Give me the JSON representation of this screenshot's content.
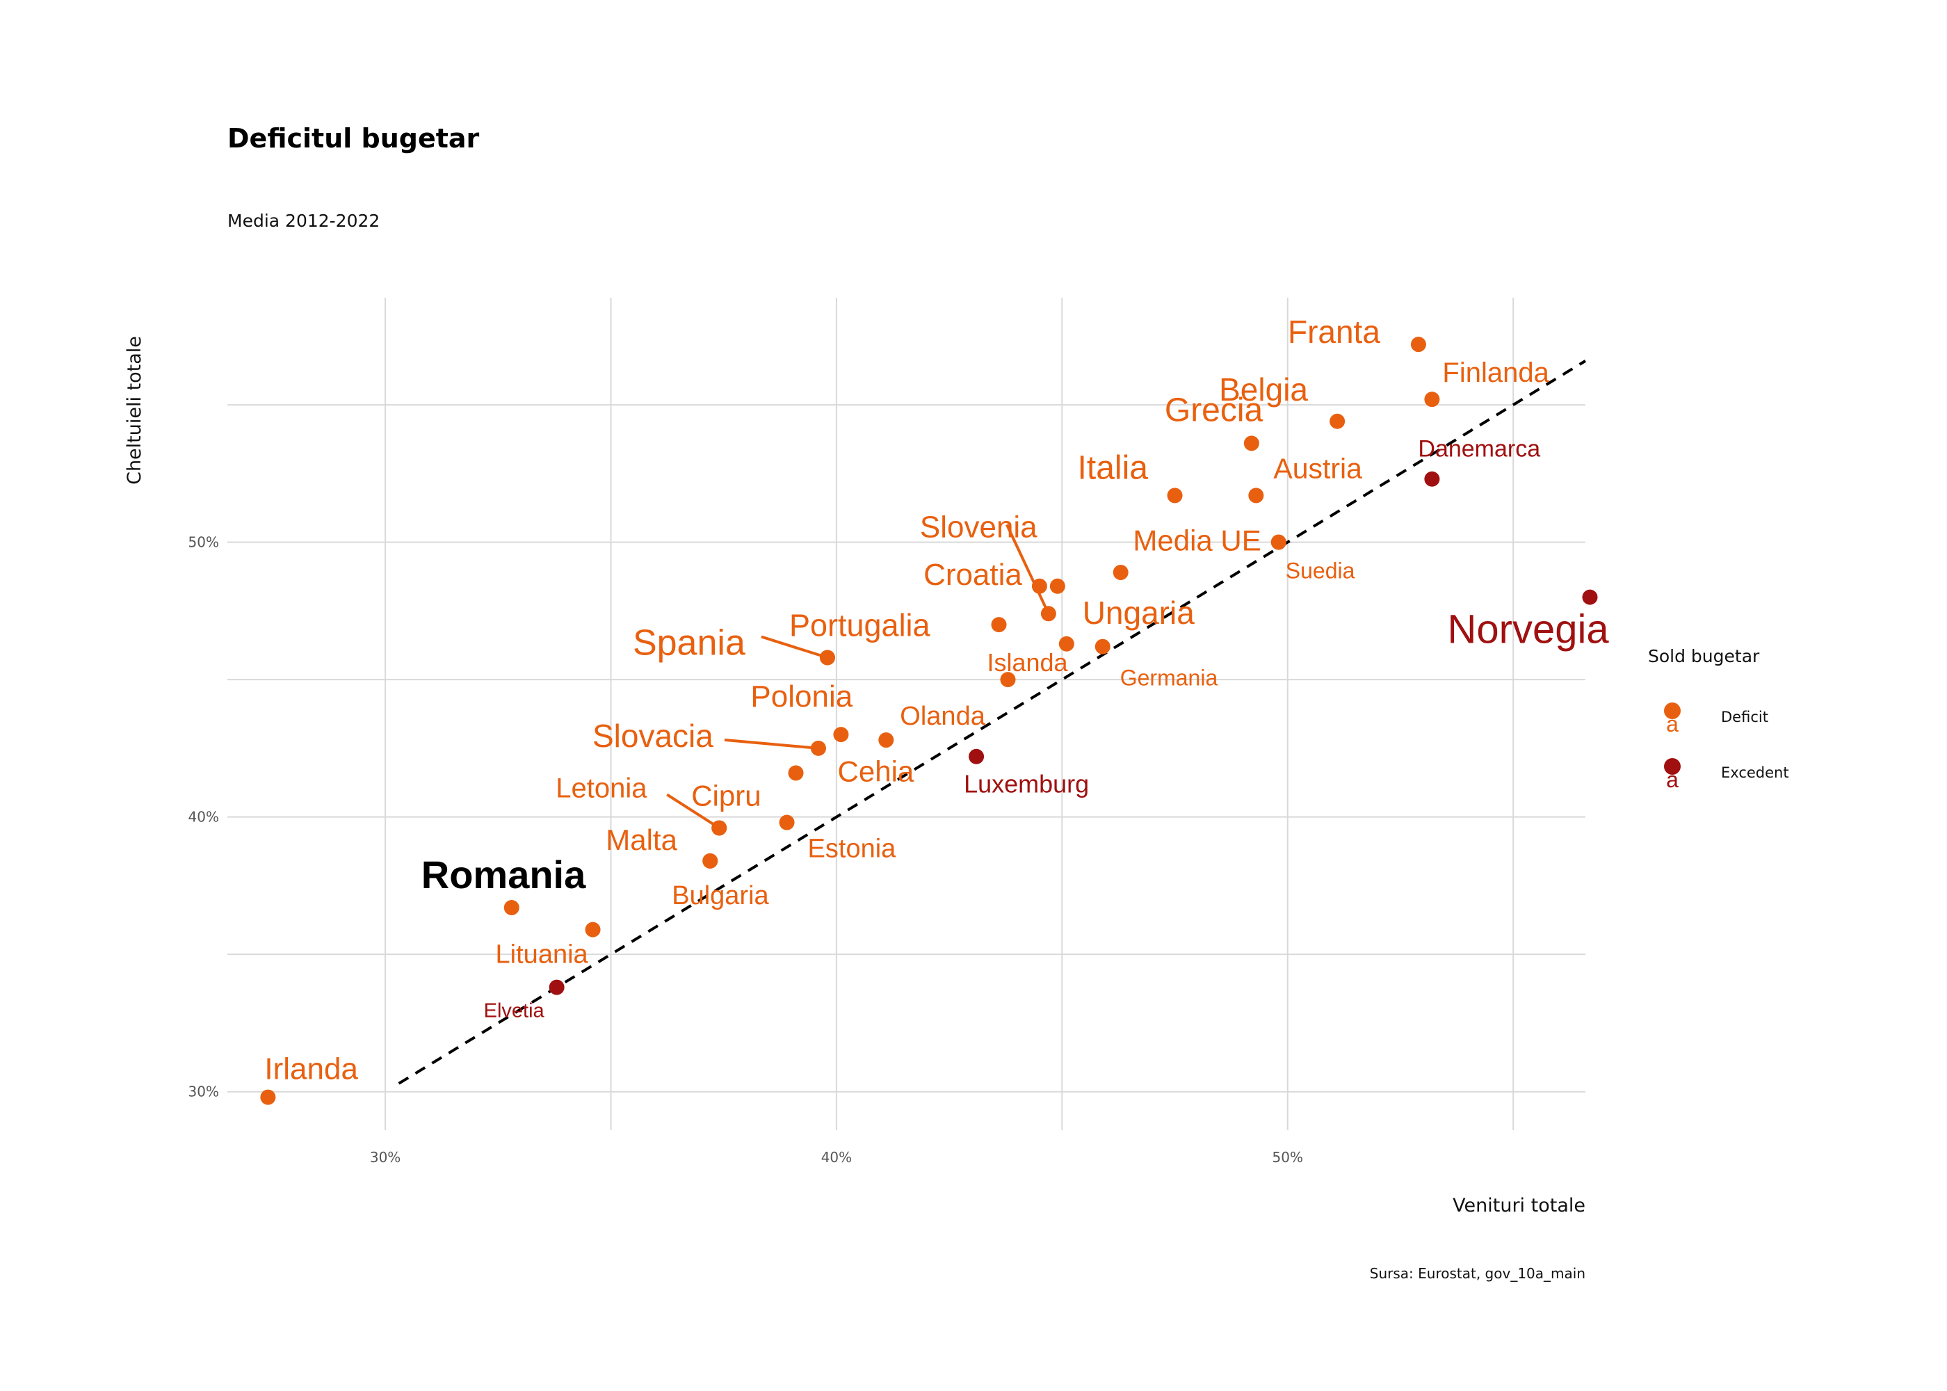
{
  "chart_data": {
    "type": "scatter",
    "title": "Deficitul bugetar",
    "subtitle": "Media 2012-2022",
    "xlabel": "Venituri totale",
    "ylabel": "Cheltuieli totale",
    "caption": "Sursa: Eurostat, gov_10a_main",
    "xlim": [
      26.5,
      56.6
    ],
    "ylim": [
      28.6,
      58.9
    ],
    "x_ticks": [
      30,
      40,
      50
    ],
    "x_tick_labels": [
      "30%",
      "40%",
      "50%"
    ],
    "y_ticks": [
      30,
      40,
      50
    ],
    "y_tick_labels": [
      "30%",
      "40%",
      "50%"
    ],
    "reference_line": "y = x",
    "grid": true,
    "legend": {
      "title": "Sold bugetar",
      "position": "right",
      "glyph": "a",
      "entries": [
        {
          "label": "Deficit",
          "color": "#e8600f"
        },
        {
          "label": "Excedent",
          "color": "#a01010"
        }
      ]
    },
    "points": [
      {
        "label": "Franta",
        "x": 52.9,
        "y": 57.2,
        "group": "Deficit"
      },
      {
        "label": "Finlanda",
        "x": 53.2,
        "y": 55.2,
        "group": "Deficit"
      },
      {
        "label": "Belgia",
        "x": 51.1,
        "y": 54.4,
        "group": "Deficit"
      },
      {
        "label": "Grecia",
        "x": 49.2,
        "y": 53.6,
        "group": "Deficit"
      },
      {
        "label": "Danemarca",
        "x": 53.2,
        "y": 52.3,
        "group": "Excedent"
      },
      {
        "label": "Italia",
        "x": 47.5,
        "y": 51.7,
        "group": "Deficit"
      },
      {
        "label": "Austria",
        "x": 49.3,
        "y": 51.7,
        "group": "Deficit"
      },
      {
        "label": "Media UE",
        "x": 49.8,
        "y": 50.0,
        "group": "Deficit"
      },
      {
        "label": "Suedia",
        "x": 49.8,
        "y": 50.0,
        "group": "Deficit"
      },
      {
        "label": "Norvegia",
        "x": 56.7,
        "y": 48.0,
        "group": "Excedent"
      },
      {
        "label": "Slovenia",
        "x": 44.7,
        "y": 47.4,
        "group": "Deficit"
      },
      {
        "label": "Croatia",
        "x": 44.5,
        "y": 48.4,
        "group": "Deficit"
      },
      {
        "label": "Ungaria",
        "x": 46.3,
        "y": 48.9,
        "group": "Deficit"
      },
      {
        "label": "",
        "x": 44.9,
        "y": 48.4,
        "group": "Deficit"
      },
      {
        "label": "Germania",
        "x": 45.9,
        "y": 46.2,
        "group": "Deficit"
      },
      {
        "label": "",
        "x": 45.1,
        "y": 46.3,
        "group": "Deficit"
      },
      {
        "label": "",
        "x": 43.6,
        "y": 47.0,
        "group": "Deficit"
      },
      {
        "label": "Islanda",
        "x": 43.8,
        "y": 45.0,
        "group": "Deficit"
      },
      {
        "label": "Spania",
        "x": 39.8,
        "y": 45.8,
        "group": "Deficit"
      },
      {
        "label": "Portugalia",
        "x": 39.8,
        "y": 45.8,
        "group": "Deficit"
      },
      {
        "label": "Polonia",
        "x": 40.1,
        "y": 43.0,
        "group": "Deficit"
      },
      {
        "label": "Olanda",
        "x": 41.1,
        "y": 42.8,
        "group": "Deficit"
      },
      {
        "label": "Slovacia",
        "x": 39.6,
        "y": 42.5,
        "group": "Deficit"
      },
      {
        "label": "Luxemburg",
        "x": 43.1,
        "y": 42.2,
        "group": "Excedent"
      },
      {
        "label": "Cehia",
        "x": 39.1,
        "y": 41.6,
        "group": "Deficit"
      },
      {
        "label": "Letonia",
        "x": 37.4,
        "y": 39.6,
        "group": "Deficit"
      },
      {
        "label": "Cipru",
        "x": 37.4,
        "y": 39.6,
        "group": "Deficit"
      },
      {
        "label": "Estonia",
        "x": 38.9,
        "y": 39.8,
        "group": "Deficit"
      },
      {
        "label": "Malta",
        "x": 37.2,
        "y": 38.4,
        "group": "Deficit"
      },
      {
        "label": "Bulgaria",
        "x": 37.2,
        "y": 38.4,
        "group": "Deficit"
      },
      {
        "label": "Romania",
        "x": 32.8,
        "y": 36.7,
        "group": "Deficit"
      },
      {
        "label": "Lituania",
        "x": 34.6,
        "y": 35.9,
        "group": "Deficit"
      },
      {
        "label": "Elvetia",
        "x": 33.8,
        "y": 33.8,
        "group": "Excedent"
      },
      {
        "label": "Irlanda",
        "x": 27.4,
        "y": 29.8,
        "group": "Deficit"
      }
    ]
  }
}
